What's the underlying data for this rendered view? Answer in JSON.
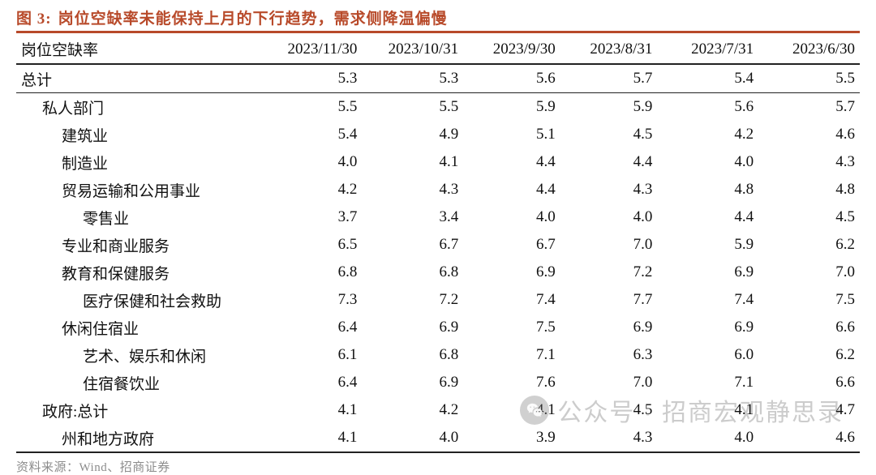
{
  "figure": {
    "number": "图 3:",
    "title": "岗位空缺率未能保持上月的下行趋势，需求侧降温偏慢",
    "accent_color": "#b84a2a"
  },
  "table": {
    "row_header": "岗位空缺率",
    "columns": [
      "2023/11/30",
      "2023/10/31",
      "2023/9/30",
      "2023/8/31",
      "2023/7/31",
      "2023/6/30"
    ],
    "rows": [
      {
        "label": "总计",
        "indent": 0,
        "values": [
          "5.3",
          "5.3",
          "5.6",
          "5.7",
          "5.4",
          "5.5"
        ],
        "total": true
      },
      {
        "label": "私人部门",
        "indent": 1,
        "values": [
          "5.5",
          "5.5",
          "5.9",
          "5.9",
          "5.6",
          "5.7"
        ]
      },
      {
        "label": "建筑业",
        "indent": 2,
        "values": [
          "5.4",
          "4.9",
          "5.1",
          "4.5",
          "4.2",
          "4.6"
        ]
      },
      {
        "label": "制造业",
        "indent": 2,
        "values": [
          "4.0",
          "4.1",
          "4.4",
          "4.4",
          "4.0",
          "4.3"
        ]
      },
      {
        "label": "贸易运输和公用事业",
        "indent": 2,
        "values": [
          "4.2",
          "4.3",
          "4.4",
          "4.3",
          "4.8",
          "4.8"
        ]
      },
      {
        "label": "零售业",
        "indent": 3,
        "values": [
          "3.7",
          "3.4",
          "4.0",
          "4.0",
          "4.4",
          "4.5"
        ]
      },
      {
        "label": "专业和商业服务",
        "indent": 2,
        "values": [
          "6.5",
          "6.7",
          "6.7",
          "7.0",
          "5.9",
          "6.2"
        ]
      },
      {
        "label": "教育和保健服务",
        "indent": 2,
        "values": [
          "6.8",
          "6.8",
          "6.9",
          "7.2",
          "6.9",
          "7.0"
        ]
      },
      {
        "label": "医疗保健和社会救助",
        "indent": 3,
        "values": [
          "7.3",
          "7.2",
          "7.4",
          "7.7",
          "7.4",
          "7.5"
        ]
      },
      {
        "label": "休闲住宿业",
        "indent": 2,
        "values": [
          "6.4",
          "6.9",
          "7.5",
          "6.9",
          "6.9",
          "6.6"
        ]
      },
      {
        "label": "艺术、娱乐和休闲",
        "indent": 3,
        "values": [
          "6.1",
          "6.8",
          "7.1",
          "6.3",
          "6.0",
          "6.2"
        ]
      },
      {
        "label": "住宿餐饮业",
        "indent": 3,
        "values": [
          "6.4",
          "6.9",
          "7.6",
          "7.0",
          "7.1",
          "6.6"
        ]
      },
      {
        "label": "政府:总计",
        "indent": 1,
        "values": [
          "4.1",
          "4.2",
          "4.1",
          "4.5",
          "4.1",
          "4.7"
        ]
      },
      {
        "label": "州和地方政府",
        "indent": 2,
        "values": [
          "4.1",
          "4.0",
          "3.9",
          "4.3",
          "4.0",
          "4.6"
        ],
        "last": true
      }
    ],
    "col_widths": [
      "29%",
      "12%",
      "12%",
      "11.5%",
      "11.5%",
      "12%",
      "12%"
    ],
    "border_color": "#222222",
    "fontsize": 19
  },
  "source": {
    "text": "资料来源：Wind、招商证券"
  },
  "watermark": {
    "text": "公众号 · 招商宏观静思录"
  }
}
